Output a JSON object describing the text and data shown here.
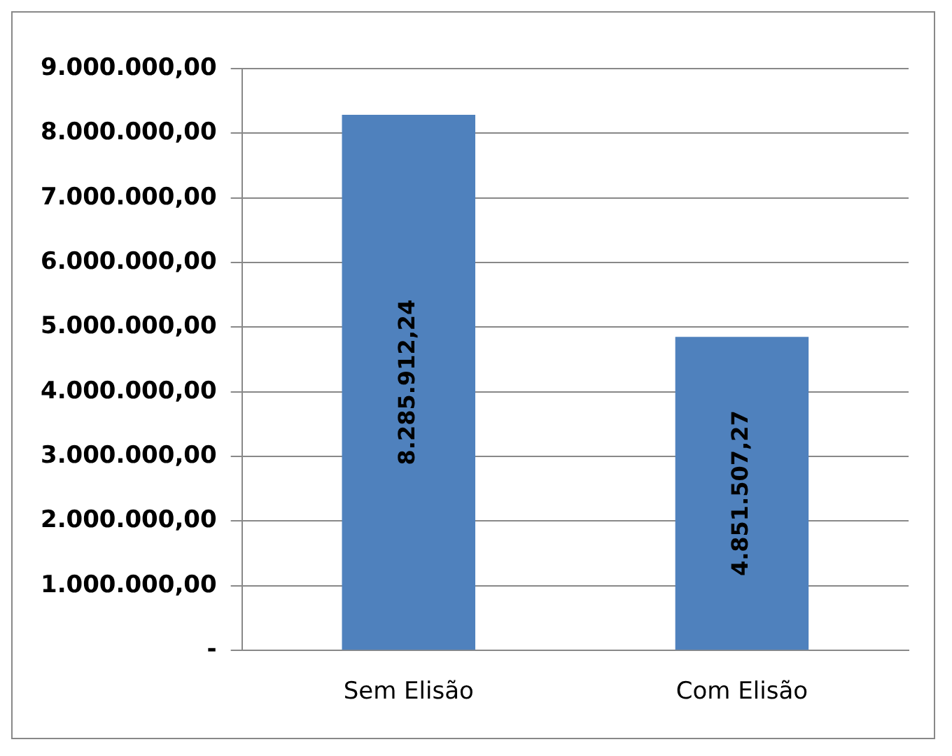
{
  "chart_data": {
    "type": "bar",
    "categories": [
      "Sem Elisão",
      "Com Elisão"
    ],
    "values": [
      8285912.24,
      4851507.27
    ],
    "value_labels": [
      "8.285.912,24",
      "4.851.507,27"
    ],
    "color": "#4f81bd",
    "ylim": [
      0,
      9000000
    ],
    "yticks": [
      {
        "value": 0,
        "label": "-"
      },
      {
        "value": 1000000,
        "label": "1.000.000,00"
      },
      {
        "value": 2000000,
        "label": "2.000.000,00"
      },
      {
        "value": 3000000,
        "label": "3.000.000,00"
      },
      {
        "value": 4000000,
        "label": "4.000.000,00"
      },
      {
        "value": 5000000,
        "label": "5.000.000,00"
      },
      {
        "value": 6000000,
        "label": "6.000.000,00"
      },
      {
        "value": 7000000,
        "label": "7.000.000,00"
      },
      {
        "value": 8000000,
        "label": "8.000.000,00"
      },
      {
        "value": 9000000,
        "label": "9.000.000,00"
      }
    ],
    "grid": "y"
  }
}
